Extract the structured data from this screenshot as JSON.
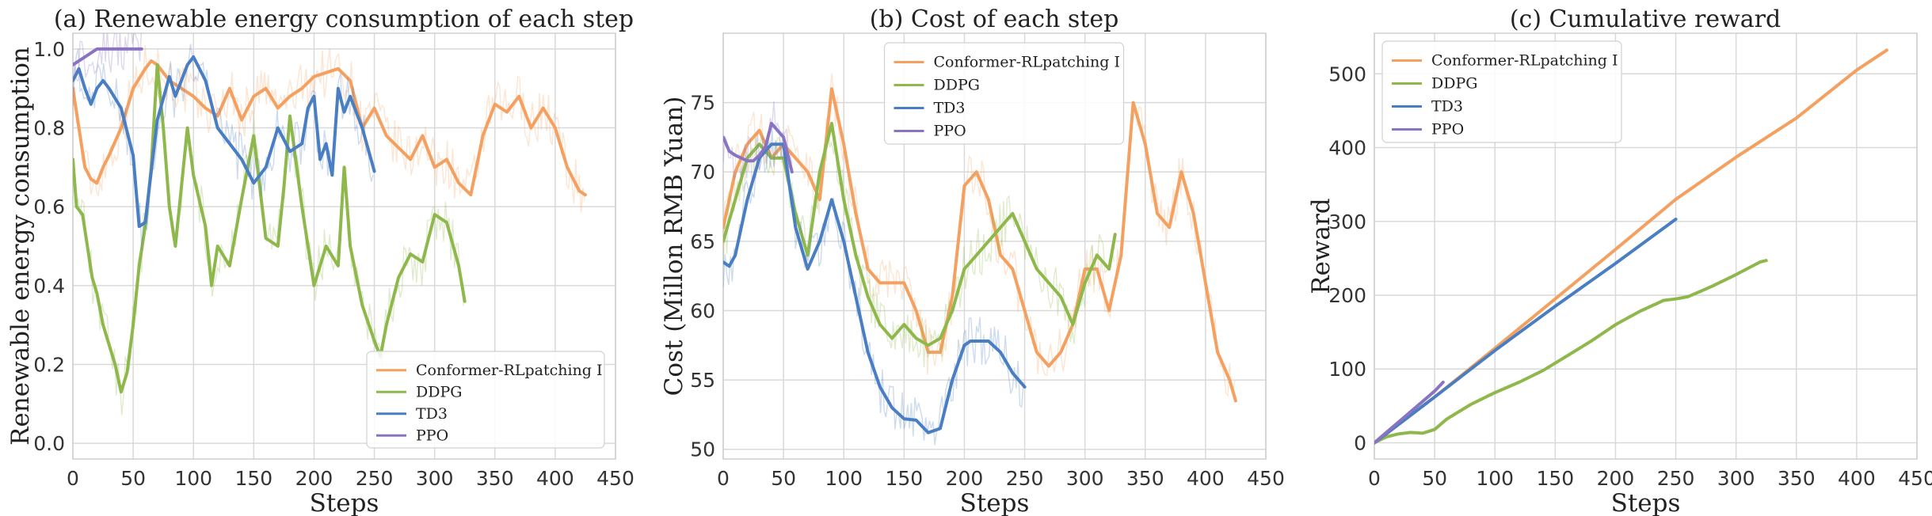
{
  "figure": {
    "width_label": "",
    "background": "#ffffff"
  },
  "colors": {
    "Conformer-RLpatching I": "#f4a060",
    "DDPG": "#8fb84c",
    "TD3": "#4a7ec2",
    "PPO": "#8a74c2"
  },
  "chart_data": [
    {
      "type": "line",
      "title": "(a) Renewable energy consumption of each step",
      "xlabel": "Steps",
      "ylabel": "Renewable energy consumption",
      "xlim": [
        0,
        450
      ],
      "ylim": [
        -0.04,
        1.04
      ],
      "xticks": [
        0,
        50,
        100,
        150,
        200,
        250,
        300,
        350,
        400,
        450
      ],
      "yticks": [
        0.0,
        0.2,
        0.4,
        0.6,
        0.8,
        1.0
      ],
      "ytick_labels": [
        "0.0",
        "0.2",
        "0.4",
        "0.6",
        "0.8",
        "1.0"
      ],
      "legend": {
        "position": "bottom-right",
        "entries": [
          "Conformer-RLpatching I",
          "DDPG",
          "TD3",
          "PPO"
        ]
      },
      "series": [
        {
          "name": "Conformer-RLpatching I",
          "x": [
            0,
            5,
            10,
            15,
            20,
            25,
            30,
            40,
            50,
            60,
            65,
            70,
            80,
            90,
            100,
            110,
            120,
            130,
            140,
            150,
            160,
            170,
            180,
            190,
            200,
            210,
            220,
            230,
            240,
            250,
            260,
            270,
            280,
            290,
            300,
            310,
            320,
            330,
            340,
            350,
            360,
            370,
            380,
            390,
            400,
            410,
            420,
            425
          ],
          "y": [
            0.9,
            0.8,
            0.7,
            0.67,
            0.66,
            0.7,
            0.73,
            0.8,
            0.9,
            0.95,
            0.97,
            0.96,
            0.92,
            0.9,
            0.88,
            0.85,
            0.83,
            0.9,
            0.82,
            0.88,
            0.9,
            0.85,
            0.88,
            0.9,
            0.93,
            0.94,
            0.95,
            0.92,
            0.8,
            0.85,
            0.78,
            0.75,
            0.72,
            0.78,
            0.7,
            0.72,
            0.66,
            0.63,
            0.78,
            0.86,
            0.84,
            0.88,
            0.8,
            0.85,
            0.8,
            0.7,
            0.64,
            0.63
          ]
        },
        {
          "name": "DDPG",
          "x": [
            0,
            3,
            8,
            12,
            16,
            20,
            25,
            30,
            35,
            40,
            45,
            50,
            55,
            60,
            65,
            70,
            75,
            80,
            85,
            90,
            95,
            100,
            110,
            115,
            120,
            130,
            140,
            150,
            160,
            170,
            175,
            180,
            190,
            200,
            210,
            220,
            225,
            230,
            240,
            250,
            255,
            260,
            270,
            280,
            290,
            300,
            310,
            320,
            325
          ],
          "y": [
            0.72,
            0.6,
            0.58,
            0.5,
            0.42,
            0.38,
            0.3,
            0.25,
            0.2,
            0.13,
            0.18,
            0.3,
            0.45,
            0.55,
            0.7,
            0.96,
            0.8,
            0.6,
            0.5,
            0.65,
            0.8,
            0.68,
            0.55,
            0.4,
            0.5,
            0.45,
            0.62,
            0.78,
            0.52,
            0.5,
            0.65,
            0.83,
            0.6,
            0.4,
            0.5,
            0.45,
            0.7,
            0.5,
            0.35,
            0.26,
            0.22,
            0.3,
            0.42,
            0.48,
            0.46,
            0.58,
            0.56,
            0.45,
            0.36
          ]
        },
        {
          "name": "TD3",
          "x": [
            0,
            5,
            10,
            15,
            20,
            25,
            30,
            40,
            50,
            55,
            60,
            70,
            80,
            85,
            90,
            95,
            100,
            110,
            120,
            130,
            140,
            150,
            160,
            170,
            180,
            190,
            195,
            200,
            205,
            210,
            215,
            220,
            225,
            230,
            240,
            250
          ],
          "y": [
            0.92,
            0.95,
            0.9,
            0.86,
            0.9,
            0.92,
            0.9,
            0.85,
            0.73,
            0.55,
            0.56,
            0.82,
            0.93,
            0.88,
            0.92,
            0.96,
            0.98,
            0.92,
            0.8,
            0.76,
            0.72,
            0.66,
            0.7,
            0.8,
            0.74,
            0.76,
            0.85,
            0.88,
            0.72,
            0.76,
            0.68,
            0.9,
            0.84,
            0.88,
            0.8,
            0.69
          ]
        },
        {
          "name": "PPO",
          "x": [
            0,
            5,
            10,
            15,
            20,
            25,
            30,
            40,
            50,
            57
          ],
          "y": [
            0.96,
            0.97,
            0.98,
            0.99,
            1.0,
            1.0,
            1.0,
            1.0,
            1.0,
            1.0
          ]
        }
      ]
    },
    {
      "type": "line",
      "title": "(b) Cost of each step",
      "xlabel": "Steps",
      "ylabel": "Cost (Millon RMB Yuan)",
      "xlim": [
        0,
        450
      ],
      "ylim": [
        49.3,
        80
      ],
      "xticks": [
        0,
        50,
        100,
        150,
        200,
        250,
        300,
        350,
        400,
        450
      ],
      "yticks": [
        50,
        55,
        60,
        65,
        70,
        75
      ],
      "ytick_labels": [
        "50",
        "55",
        "60",
        "65",
        "70",
        "75"
      ],
      "legend": {
        "position": "top-center",
        "entries": [
          "Conformer-RLpatching I",
          "DDPG",
          "TD3",
          "PPO"
        ]
      },
      "series": [
        {
          "name": "Conformer-RLpatching I",
          "x": [
            0,
            10,
            20,
            30,
            40,
            50,
            60,
            70,
            80,
            90,
            100,
            110,
            120,
            130,
            140,
            150,
            160,
            170,
            180,
            190,
            200,
            210,
            220,
            230,
            240,
            250,
            260,
            270,
            280,
            290,
            300,
            310,
            320,
            330,
            340,
            350,
            360,
            370,
            380,
            390,
            400,
            410,
            420,
            425
          ],
          "y": [
            66,
            70,
            72,
            73,
            71,
            72,
            71,
            70,
            68,
            76,
            72,
            67,
            63,
            62,
            62,
            62,
            60,
            57,
            57,
            61,
            69,
            70,
            68,
            64,
            63,
            60,
            57,
            56,
            57,
            59,
            63,
            63,
            60,
            64,
            75,
            72,
            67,
            66,
            70,
            67,
            62,
            57,
            55,
            53.5
          ]
        },
        {
          "name": "DDPG",
          "x": [
            0,
            10,
            20,
            30,
            40,
            50,
            60,
            70,
            80,
            90,
            100,
            110,
            120,
            130,
            140,
            150,
            160,
            170,
            180,
            190,
            200,
            210,
            220,
            230,
            240,
            250,
            260,
            270,
            280,
            290,
            300,
            310,
            320,
            325
          ],
          "y": [
            65,
            68,
            71,
            72,
            71,
            71,
            67,
            64,
            70,
            73.5,
            68,
            64,
            61,
            59,
            58,
            59,
            58,
            57.5,
            58,
            60,
            63,
            64,
            65,
            66,
            67,
            65,
            63,
            62,
            61,
            59,
            62,
            64,
            63,
            65.5
          ]
        },
        {
          "name": "TD3",
          "x": [
            0,
            5,
            10,
            20,
            30,
            40,
            50,
            60,
            70,
            80,
            90,
            100,
            110,
            120,
            130,
            140,
            150,
            160,
            170,
            180,
            190,
            200,
            205,
            210,
            220,
            230,
            240,
            250
          ],
          "y": [
            63.5,
            63.2,
            64,
            68,
            71,
            72,
            72,
            66,
            63,
            65,
            68,
            65,
            61,
            57,
            54.5,
            53,
            52.2,
            52.1,
            51.2,
            51.5,
            55,
            57.5,
            57.8,
            57.8,
            57.8,
            57,
            55.5,
            54.5
          ]
        },
        {
          "name": "PPO",
          "x": [
            0,
            5,
            10,
            15,
            20,
            25,
            30,
            35,
            40,
            45,
            50,
            57
          ],
          "y": [
            72.5,
            71.5,
            71.2,
            71,
            70.8,
            70.8,
            71.2,
            71.8,
            73.5,
            73,
            72.5,
            70
          ]
        }
      ]
    },
    {
      "type": "line",
      "title": "(c) Cumulative reward",
      "xlabel": "Steps",
      "ylabel": "Reward",
      "xlim": [
        0,
        450
      ],
      "ylim": [
        -22,
        555
      ],
      "xticks": [
        0,
        50,
        100,
        150,
        200,
        250,
        300,
        350,
        400,
        450
      ],
      "yticks": [
        0,
        100,
        200,
        300,
        400,
        500
      ],
      "ytick_labels": [
        "0",
        "100",
        "200",
        "300",
        "400",
        "500"
      ],
      "legend": {
        "position": "top-left",
        "entries": [
          "Conformer-RLpatching I",
          "DDPG",
          "TD3",
          "PPO"
        ]
      },
      "series": [
        {
          "name": "Conformer-RLpatching I",
          "x": [
            0,
            50,
            100,
            150,
            200,
            250,
            300,
            350,
            400,
            425
          ],
          "y": [
            0,
            62,
            128,
            195,
            262,
            330,
            387,
            440,
            505,
            532
          ]
        },
        {
          "name": "DDPG",
          "x": [
            0,
            10,
            20,
            30,
            40,
            50,
            60,
            80,
            100,
            120,
            140,
            160,
            180,
            200,
            220,
            240,
            250,
            260,
            280,
            300,
            320,
            325
          ],
          "y": [
            0,
            8,
            12,
            14,
            13,
            18,
            32,
            52,
            68,
            82,
            98,
            118,
            138,
            160,
            178,
            193,
            195,
            198,
            212,
            228,
            245,
            247
          ]
        },
        {
          "name": "TD3",
          "x": [
            0,
            50,
            100,
            150,
            200,
            250
          ],
          "y": [
            0,
            62,
            125,
            185,
            243,
            303
          ]
        },
        {
          "name": "PPO",
          "x": [
            0,
            10,
            20,
            30,
            40,
            50,
            57
          ],
          "y": [
            0,
            14,
            28,
            42,
            56,
            70,
            82
          ]
        }
      ]
    }
  ]
}
